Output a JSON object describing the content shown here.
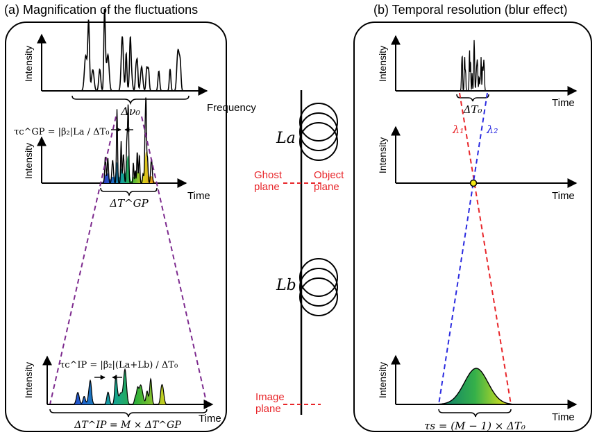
{
  "panel_a": {
    "title": "(a) Magnification of the fluctuations",
    "plot1": {
      "ylabel": "Intensity",
      "xlabel": "Frequency",
      "bandwidth_label": "Δν₀"
    },
    "plot2": {
      "ylabel": "Intensity",
      "xlabel": "Time",
      "tau_label": "τc^GP = |β₂|La / ΔT₀",
      "width_label": "ΔT^GP"
    },
    "plot3": {
      "ylabel": "Intensity",
      "xlabel": "Time",
      "tau_label": "τc^IP = |β₂|(La+Lb) / ΔT₀",
      "width_label": "ΔT^IP = M × ΔT^GP"
    }
  },
  "middle": {
    "fiber_a_label": "La",
    "fiber_b_label": "Lb",
    "ghost_plane_label": "Ghost plane",
    "object_plane_label": "Object plane",
    "image_plane_label": "Image plane",
    "plane_color": "#e8262a"
  },
  "panel_b": {
    "title": "(b) Temporal resolution (blur effect)",
    "plot1": {
      "ylabel": "Intensity",
      "xlabel": "Time",
      "width_label": "ΔT₀"
    },
    "plot2": {
      "ylabel": "Intensity",
      "xlabel": "Time",
      "lambda1_label": "λ₁",
      "lambda2_label": "λ₂",
      "lambda1_color": "#e8262a",
      "lambda2_color": "#2a2ae0"
    },
    "plot3": {
      "ylabel": "Intensity",
      "xlabel": "Time",
      "resolution_label": "τs = (M − 1) × ΔT₀"
    }
  },
  "colors": {
    "cone": "#7d2a8e",
    "lambda1": "#e8262a",
    "lambda2": "#2a2ae0"
  }
}
